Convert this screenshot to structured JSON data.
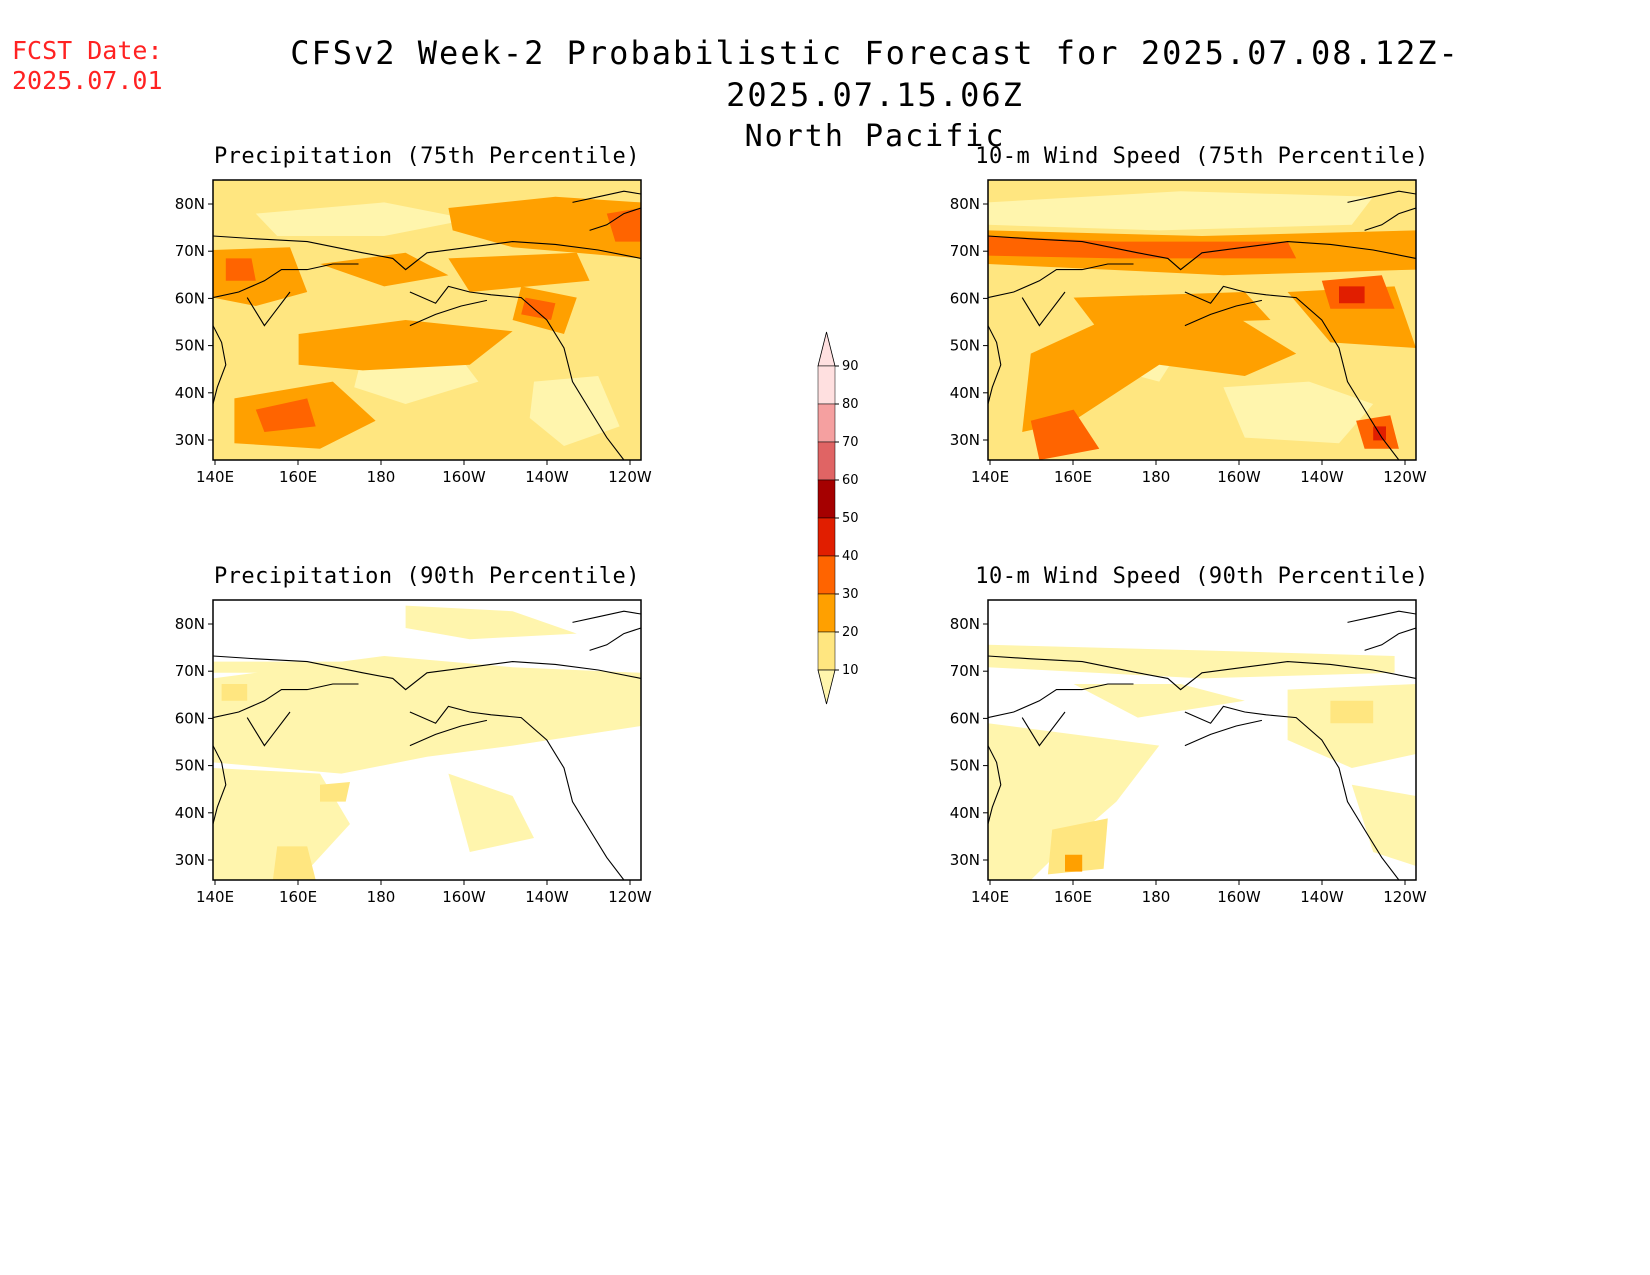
{
  "header": {
    "fcst_label": "FCST Date:",
    "fcst_date": "2025.07.01",
    "title_line1": "CFSv2 Week-2 Probabilistic Forecast for 2025.07.08.12Z-2025.07.15.06Z",
    "title_line2": "North Pacific"
  },
  "axes": {
    "lat_labels": [
      "80N",
      "70N",
      "60N",
      "50N",
      "40N",
      "30N"
    ],
    "lon_labels": [
      "140E",
      "160E",
      "180",
      "160W",
      "140W",
      "120W"
    ]
  },
  "colorbar": {
    "levels": [
      "10",
      "20",
      "30",
      "40",
      "50",
      "60",
      "70",
      "80",
      "90"
    ],
    "colors": [
      "#fff5ad",
      "#ffe680",
      "#ffa000",
      "#ff6400",
      "#e11e00",
      "#a50000",
      "#e06464",
      "#f5a0a0",
      "#ffe0e0"
    ]
  },
  "panels": [
    {
      "id": "precip75",
      "title": "Precipitation (75th Percentile)"
    },
    {
      "id": "wind75",
      "title": "10-m Wind Speed (75th Percentile)"
    },
    {
      "id": "precip90",
      "title": "Precipitation (90th Percentile)"
    },
    {
      "id": "wind90",
      "title": "10-m Wind Speed (90th Percentile)"
    }
  ]
}
